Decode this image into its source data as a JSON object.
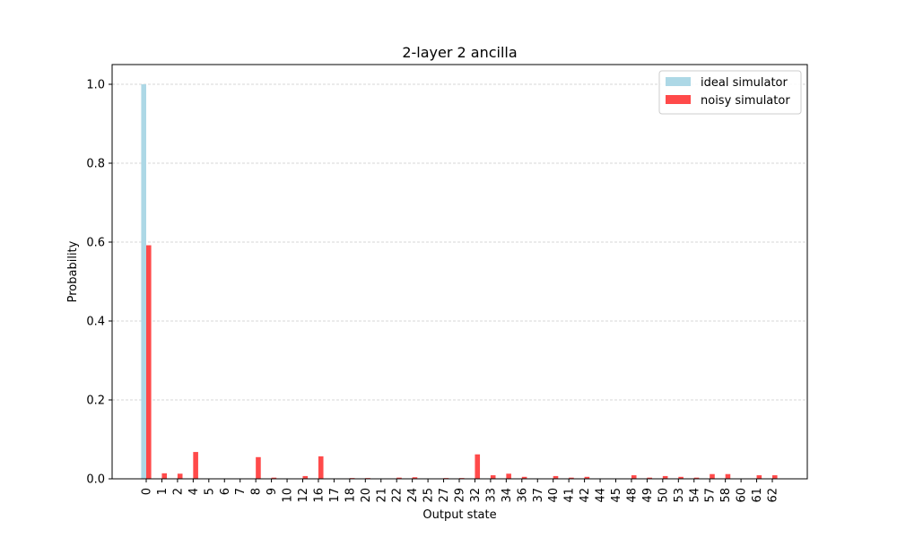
{
  "chart_data": {
    "type": "bar",
    "title": "2-layer 2 ancilla",
    "xlabel": "Output state",
    "ylabel": "Probability",
    "ylim": [
      0,
      1.05
    ],
    "yticks": [
      "0.0",
      "0.2",
      "0.4",
      "0.6",
      "0.8",
      "1.0"
    ],
    "grid": "horizontal dashed",
    "legend_position": "top-right",
    "categories": [
      "0",
      "1",
      "2",
      "4",
      "5",
      "6",
      "7",
      "8",
      "9",
      "10",
      "12",
      "16",
      "17",
      "18",
      "20",
      "21",
      "22",
      "24",
      "25",
      "27",
      "29",
      "32",
      "33",
      "34",
      "36",
      "37",
      "40",
      "41",
      "42",
      "44",
      "45",
      "48",
      "49",
      "50",
      "53",
      "54",
      "57",
      "58",
      "60",
      "61",
      "62"
    ],
    "series": [
      {
        "name": "ideal simulator",
        "color": "#add8e6",
        "values": [
          1.0,
          0,
          0,
          0,
          0,
          0,
          0,
          0,
          0,
          0,
          0,
          0,
          0,
          0,
          0,
          0,
          0,
          0,
          0,
          0,
          0,
          0,
          0,
          0,
          0,
          0,
          0,
          0,
          0,
          0,
          0,
          0,
          0,
          0,
          0,
          0,
          0,
          0,
          0,
          0,
          0
        ]
      },
      {
        "name": "noisy simulator",
        "color": "#ff4a4a",
        "values": [
          0.592,
          0.014,
          0.013,
          0.068,
          0.001,
          0.001,
          0.001,
          0.055,
          0.003,
          0.001,
          0.007,
          0.057,
          0.001,
          0.002,
          0.002,
          0.001,
          0.003,
          0.004,
          0.001,
          0.002,
          0.002,
          0.062,
          0.009,
          0.013,
          0.005,
          0.001,
          0.007,
          0.003,
          0.005,
          0.001,
          0.001,
          0.009,
          0.003,
          0.007,
          0.005,
          0.003,
          0.012,
          0.012,
          0.001,
          0.009,
          0.009
        ]
      }
    ]
  }
}
